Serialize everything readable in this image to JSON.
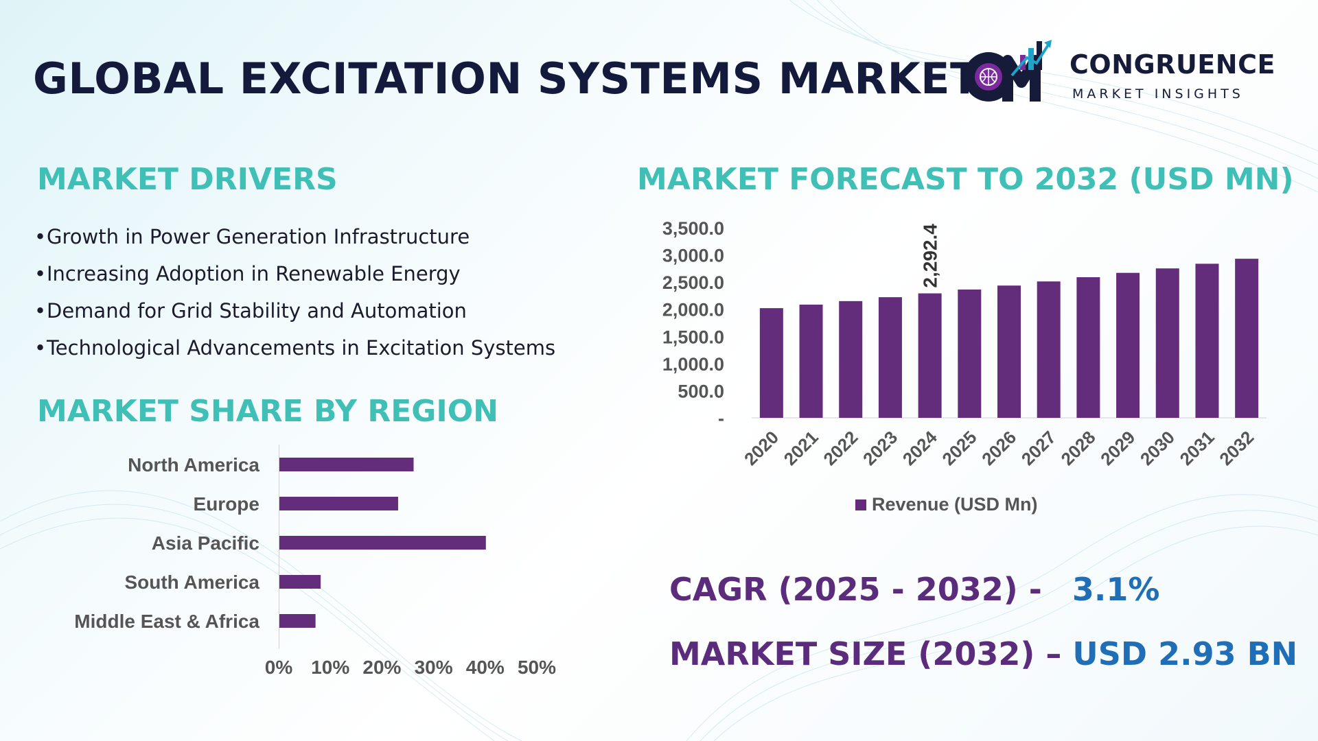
{
  "header": {
    "title": "GLOBAL EXCITATION SYSTEMS MARKET",
    "logo_name": "CONGRUENCE",
    "logo_sub": "MARKET INSIGHTS"
  },
  "drivers": {
    "title": "MARKET DRIVERS",
    "items": [
      "Growth in Power Generation Infrastructure",
      "Increasing Adoption in Renewable Energy",
      "Demand for Grid Stability and Automation",
      "Technological Advancements in Excitation Systems"
    ]
  },
  "region": {
    "title": "MARKET SHARE BY REGION"
  },
  "forecast": {
    "title": "MARKET FORECAST TO 2032 (USD MN)"
  },
  "kpis": {
    "cagr_label": "CAGR (2025 - 2032) -",
    "cagr_value": "3.1%",
    "size_label": "MARKET SIZE (2032) –",
    "size_value": "USD 2.93 BN"
  },
  "colors": {
    "bar": "#642d7c",
    "section_title": "#3fbfb6",
    "title": "#141a3c",
    "kpi_label": "#5c2c7c",
    "kpi_value": "#1f6eb6"
  },
  "chart_data": [
    {
      "type": "bar",
      "orientation": "vertical",
      "categories": [
        "2020",
        "2021",
        "2022",
        "2023",
        "2024",
        "2025",
        "2026",
        "2027",
        "2028",
        "2029",
        "2030",
        "2031",
        "2032"
      ],
      "series": [
        {
          "name": "Revenue (USD Mn)",
          "values": [
            2020,
            2085,
            2150,
            2222,
            2292.4,
            2363,
            2436,
            2512,
            2590,
            2670,
            2752,
            2838,
            2930
          ]
        }
      ],
      "ylim": [
        0,
        3500
      ],
      "yticks": [
        0,
        500,
        1000,
        1500,
        2000,
        2500,
        3000,
        3500
      ],
      "ytick_labels": [
        "-",
        "500.0",
        "1,000.0",
        "1,500.0",
        "2,000.0",
        "2,500.0",
        "3,000.0",
        "3,500.0"
      ],
      "data_labels": [
        {
          "category": "2024",
          "text": "2,292.4"
        }
      ],
      "legend": "bottom",
      "grid": false
    },
    {
      "type": "bar",
      "orientation": "horizontal",
      "categories": [
        "North America",
        "Europe",
        "Asia Pacific",
        "South America",
        "Middle East & Africa"
      ],
      "values": [
        0.26,
        0.23,
        0.4,
        0.08,
        0.07
      ],
      "xlim": [
        0,
        0.5
      ],
      "xticks": [
        0,
        0.1,
        0.2,
        0.3,
        0.4,
        0.5
      ],
      "xtick_labels": [
        "0%",
        "10%",
        "20%",
        "30%",
        "40%",
        "50%"
      ],
      "grid": false
    }
  ]
}
